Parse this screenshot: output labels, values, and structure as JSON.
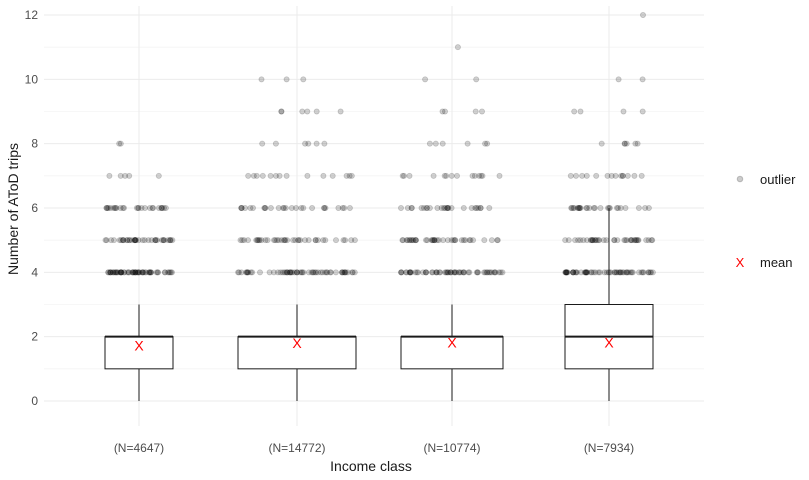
{
  "chart_data": {
    "type": "boxplot",
    "title": "",
    "xlabel": "Income class",
    "ylabel": "Number of AToD trips",
    "ylim": [
      -0.5,
      12.3
    ],
    "yticks": [
      0,
      2,
      4,
      6,
      8,
      10,
      12
    ],
    "grid": true,
    "legend_placement": "right",
    "categories": [
      "(N=4647)",
      "(N=14772)",
      "(N=10774)",
      "(N=7934)"
    ],
    "boxes": [
      {
        "q1": 1,
        "median": 2,
        "q3": 2,
        "whisker_low": 0,
        "whisker_high": 3,
        "mean": 1.72,
        "outliers": [
          4,
          5,
          6,
          7,
          8
        ]
      },
      {
        "q1": 1,
        "median": 2,
        "q3": 2,
        "whisker_low": 0,
        "whisker_high": 3,
        "mean": 1.8,
        "outliers": [
          4,
          5,
          6,
          7,
          8,
          9,
          10
        ]
      },
      {
        "q1": 1,
        "median": 2,
        "q3": 2,
        "whisker_low": 0,
        "whisker_high": 3,
        "mean": 1.82,
        "outliers": [
          4,
          5,
          6,
          7,
          8,
          9,
          10,
          11
        ]
      },
      {
        "q1": 1,
        "median": 2,
        "q3": 3,
        "whisker_low": 0,
        "whisker_high": 6,
        "mean": 1.82,
        "outliers": [
          4,
          5,
          6,
          7,
          8,
          9,
          10,
          12
        ]
      }
    ],
    "legend": [
      {
        "label": "outlier",
        "marker": "point"
      },
      {
        "label": "mean",
        "marker": "x"
      }
    ],
    "mean_marker": "X",
    "colors": {
      "mean": "#ff0000",
      "outlier": "#000000",
      "box_border": "#1a1a1a",
      "grid": "#ebebeb"
    }
  }
}
